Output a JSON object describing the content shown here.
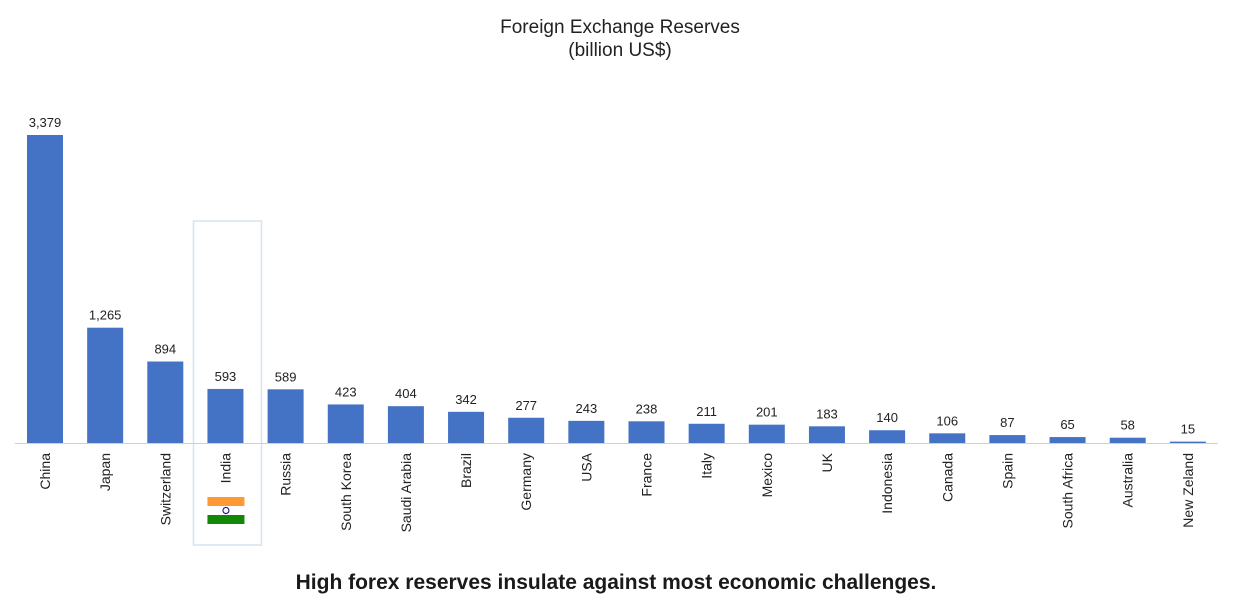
{
  "chart_data": {
    "type": "bar",
    "title": "Foreign Exchange Reserves",
    "subtitle": "(billion US$)",
    "categories": [
      "China",
      "Japan",
      "Switzerland",
      "India",
      "Russia",
      "South Korea",
      "Saudi Arabia",
      "Brazil",
      "Germany",
      "USA",
      "France",
      "Italy",
      "Mexico",
      "UK",
      "Indonesia",
      "Canada",
      "Spain",
      "South Africa",
      "Australia",
      "New Zeland"
    ],
    "values": [
      3379,
      1265,
      894,
      593,
      589,
      423,
      404,
      342,
      277,
      243,
      238,
      211,
      201,
      183,
      140,
      106,
      87,
      65,
      58,
      15
    ],
    "value_labels": [
      "3,379",
      "1,265",
      "894",
      "593",
      "589",
      "423",
      "404",
      "342",
      "277",
      "243",
      "238",
      "211",
      "201",
      "183",
      "140",
      "106",
      "87",
      "65",
      "58",
      "15"
    ],
    "ylim": [
      0,
      3379
    ],
    "grid": false,
    "legend": "none",
    "highlighted_category": "India",
    "bar_color": "#4472c4",
    "highlight_box_color": "#d6e4ef"
  },
  "caption": "High forex reserves insulate against most economic challenges.",
  "flag": {
    "icon": "india-flag-icon",
    "colors": {
      "saffron": "#ff9933",
      "white": "#ffffff",
      "green": "#138808",
      "chakra": "#000080"
    }
  }
}
